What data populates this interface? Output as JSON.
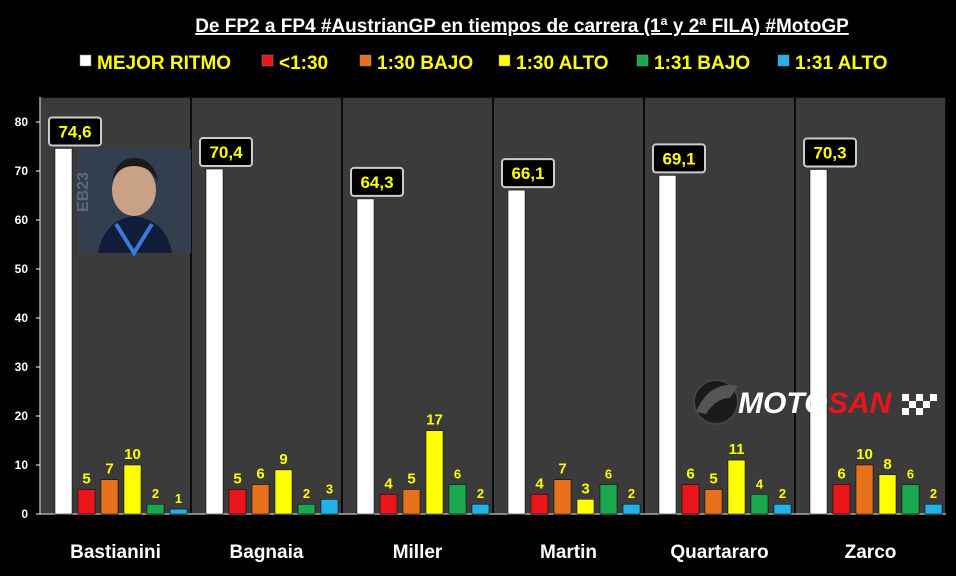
{
  "chart_data": {
    "type": "bar",
    "title": "De FP2 a FP4 #AustrianGP en tiempos de carrera (1ª y 2ª FILA) #MotoGP",
    "categories": [
      "Bastianini",
      "Bagnaia",
      "Miller",
      "Martin",
      "Quartararo",
      "Zarco"
    ],
    "series": [
      {
        "name": "MEJOR RITMO",
        "color": "#ffffff",
        "values": [
          74.6,
          70.4,
          64.3,
          66.1,
          69.1,
          70.3
        ],
        "labels": [
          "74,6",
          "70,4",
          "64,3",
          "66,1",
          "69,1",
          "70,3"
        ]
      },
      {
        "name": "<1:30",
        "color": "#e8161b",
        "values": [
          5,
          5,
          4,
          4,
          6,
          6
        ],
        "labels": [
          "5",
          "5",
          "4",
          "4",
          "6",
          "6"
        ]
      },
      {
        "name": "1:30 BAJO",
        "color": "#e8721c",
        "values": [
          7,
          6,
          5,
          7,
          5,
          10
        ],
        "labels": [
          "7",
          "6",
          "5",
          "7",
          "5",
          "10"
        ]
      },
      {
        "name": "1:30 ALTO",
        "color": "#ffff00",
        "values": [
          10,
          9,
          17,
          3,
          11,
          8
        ],
        "labels": [
          "10",
          "9",
          "17",
          "3",
          "11",
          "8"
        ]
      },
      {
        "name": "1:31 BAJO",
        "color": "#1aa84e",
        "values": [
          2,
          2,
          6,
          6,
          4,
          6
        ],
        "labels": [
          "2",
          "2",
          "6",
          "6",
          "4",
          "6"
        ]
      },
      {
        "name": "1:31 ALTO",
        "color": "#23b2e6",
        "values": [
          1,
          3,
          2,
          2,
          2,
          2
        ],
        "labels": [
          "1",
          "3",
          "2",
          "2",
          "2",
          "2"
        ]
      }
    ],
    "ylim": [
      0,
      80
    ],
    "yticks": [
      0,
      10,
      20,
      30,
      40,
      50,
      60,
      70,
      80
    ],
    "legend_position": "top",
    "grid": false,
    "watermark": {
      "part1": "MOTO",
      "part2": "SAN"
    }
  }
}
